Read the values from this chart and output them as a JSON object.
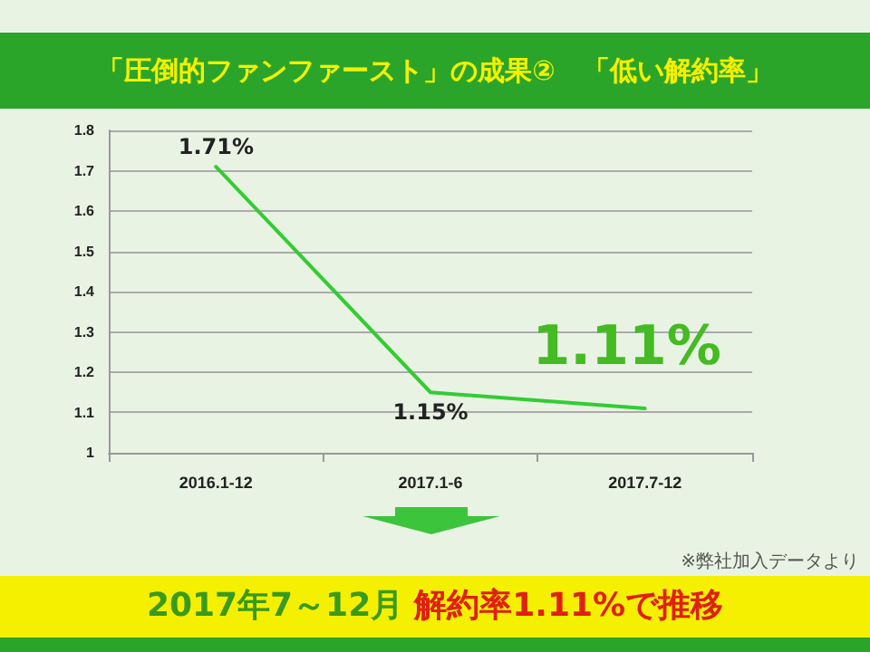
{
  "chart_data": {
    "type": "line",
    "title": "「圧倒的ファンファースト」の成果②　「低い解約率」",
    "categories": [
      "2016.1-12",
      "2017.1-6",
      "2017.7-12"
    ],
    "series": [
      {
        "color": "#33cc33",
        "values": [
          1.71,
          1.15,
          1.11
        ],
        "value_labels": [
          "1.71%",
          "1.15%",
          "1.11%"
        ]
      }
    ],
    "ylim": [
      1,
      1.8
    ],
    "yticks": [
      1,
      1.1,
      1.2,
      1.3,
      1.4,
      1.5,
      1.6,
      1.7,
      1.8
    ],
    "grid": "y",
    "marker": "none",
    "line_style": "solid",
    "annotations": [
      "※弊社加入データより",
      "2017年7～12月",
      "解約率1.11%で推移"
    ]
  }
}
